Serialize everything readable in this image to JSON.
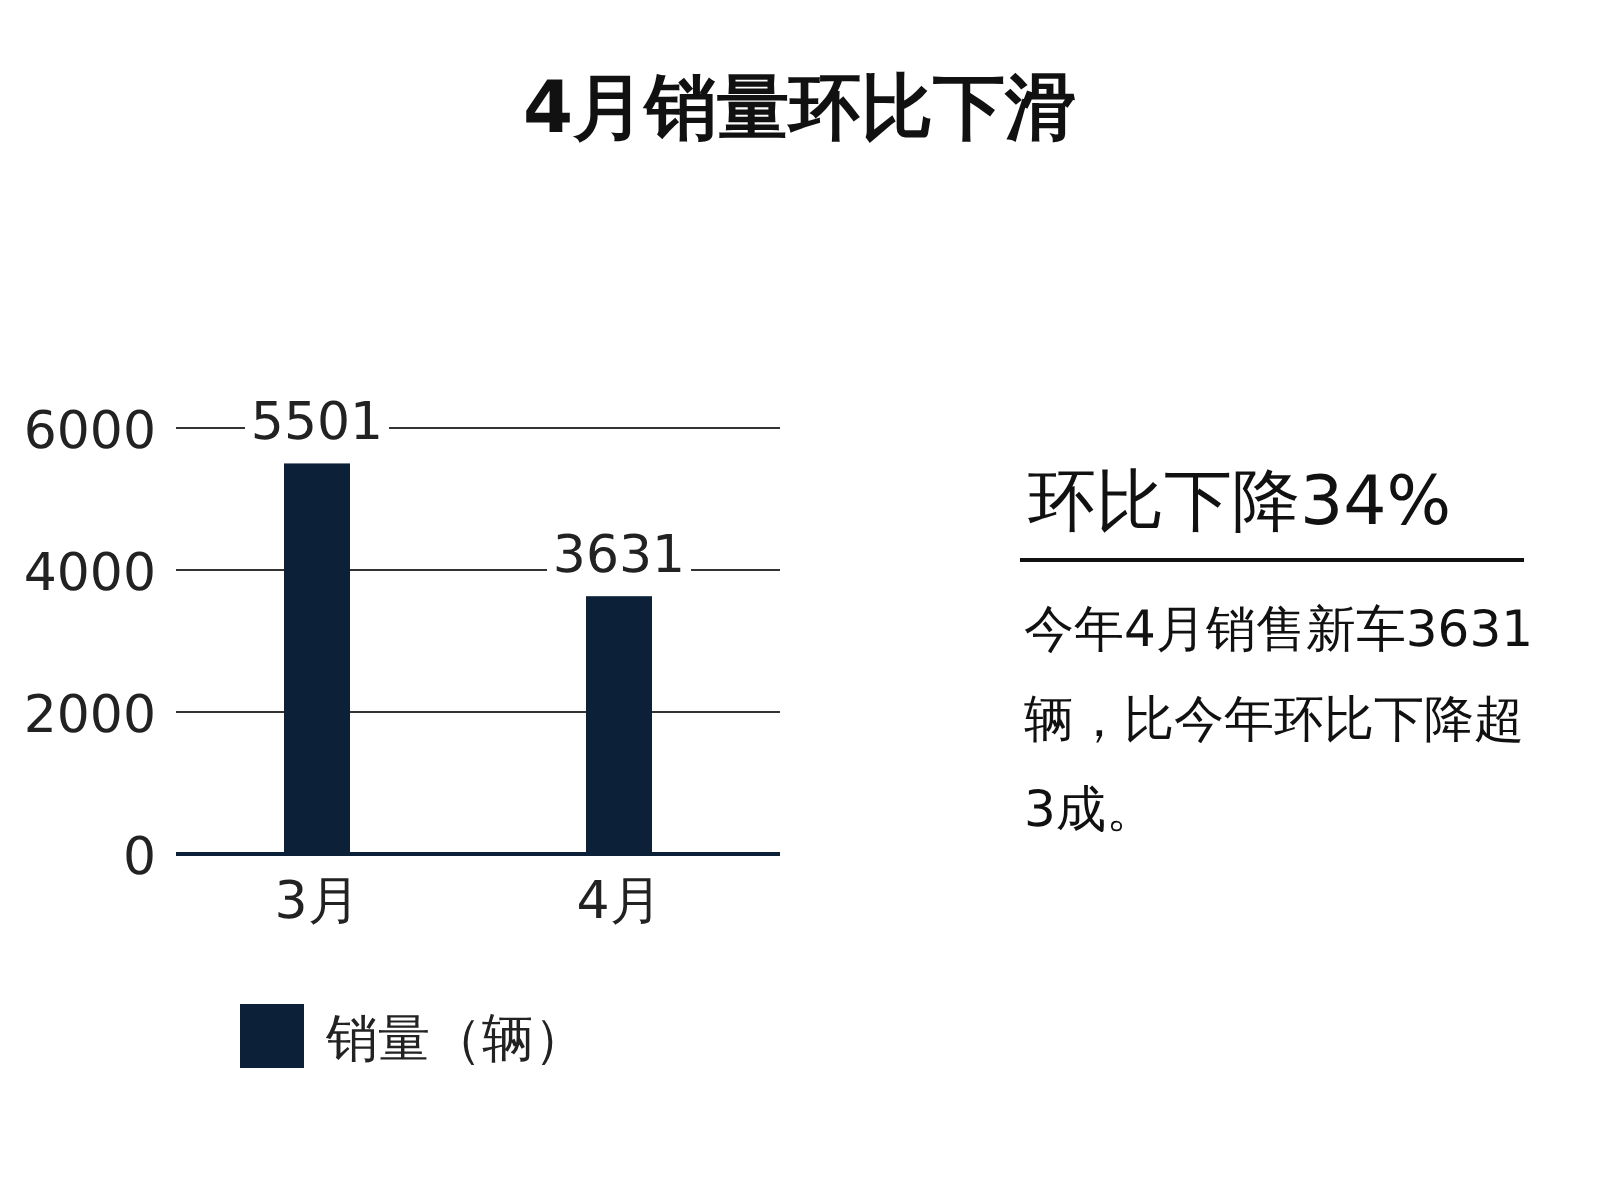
{
  "chart_data": {
    "type": "bar",
    "title": "4月销量环比下滑",
    "categories": [
      "3月",
      "4月"
    ],
    "series": [
      {
        "name": "销量（辆）",
        "color": "#0c2038",
        "values": [
          5501,
          3631
        ]
      }
    ],
    "ylim": [
      0,
      6000
    ],
    "yticks": [
      0,
      2000,
      4000,
      6000
    ],
    "grid": "y",
    "data_labels": true,
    "legend": "bottom",
    "annotations": [
      "环比下降34%",
      "今年4月销售新车3631辆，比今年环比下降超3成。"
    ]
  }
}
